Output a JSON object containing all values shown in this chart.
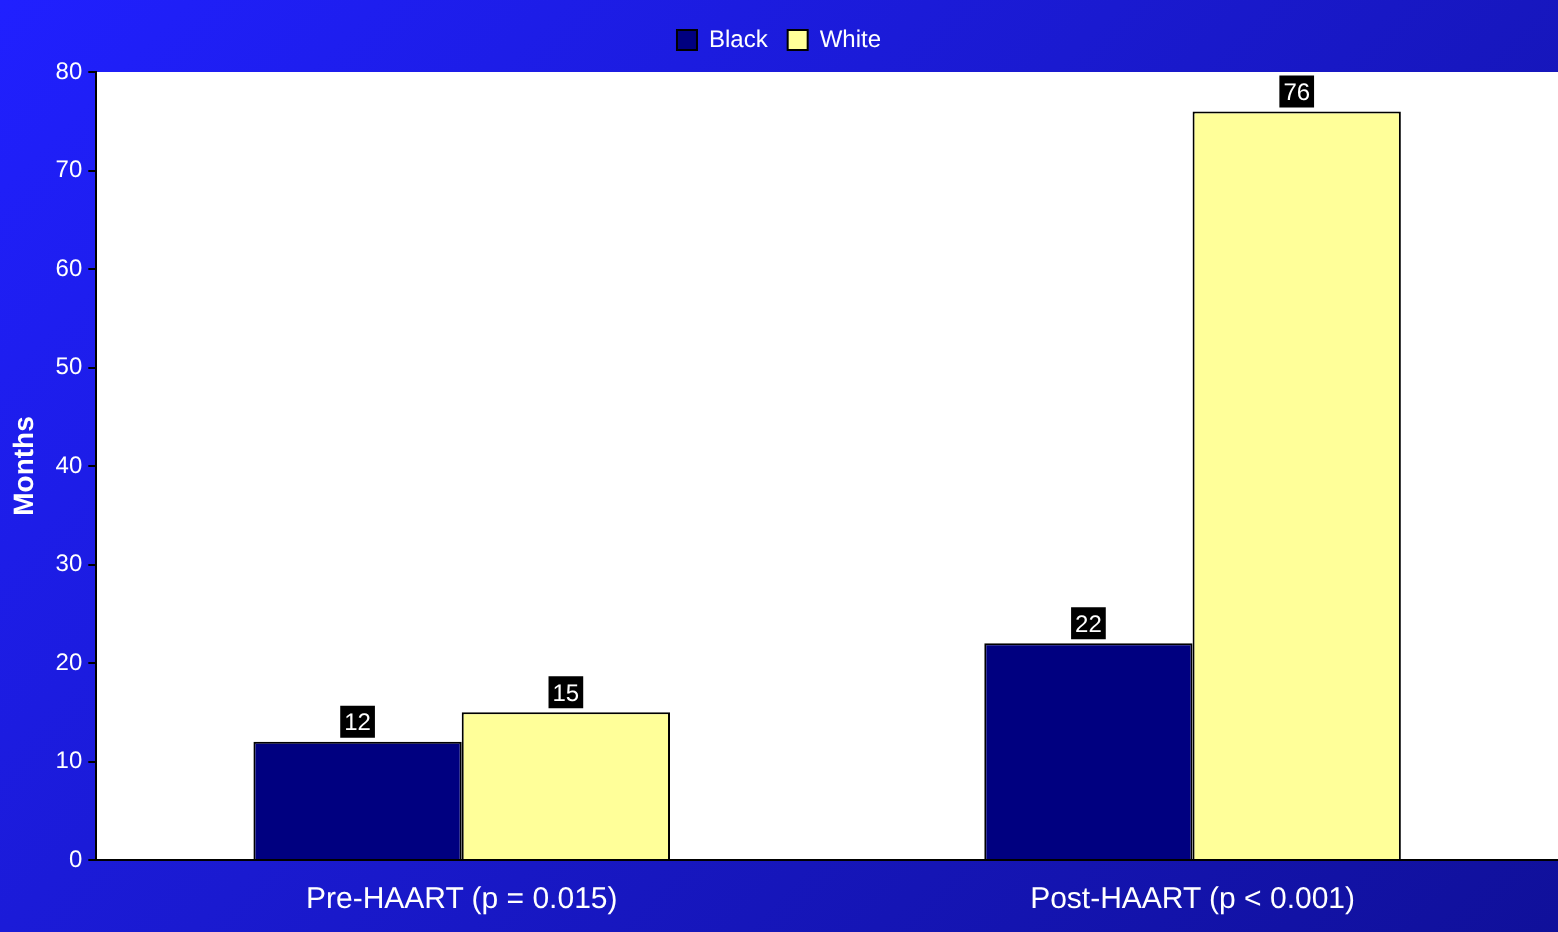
{
  "chart_data": {
    "type": "bar",
    "ylabel": "Months",
    "categories": [
      "Pre-HAART (p = 0.015)",
      "Post-HAART (p < 0.001)"
    ],
    "series": [
      {
        "name": "Black",
        "color": "#000080",
        "values": [
          12,
          22
        ]
      },
      {
        "name": "White",
        "color": "#ffff99",
        "values": [
          15,
          76
        ]
      }
    ],
    "ylim": [
      0,
      80
    ],
    "yticks": [
      0,
      10,
      20,
      30,
      40,
      50,
      60,
      70,
      80
    ],
    "grid": false,
    "legend": "top",
    "data_labels": true
  }
}
